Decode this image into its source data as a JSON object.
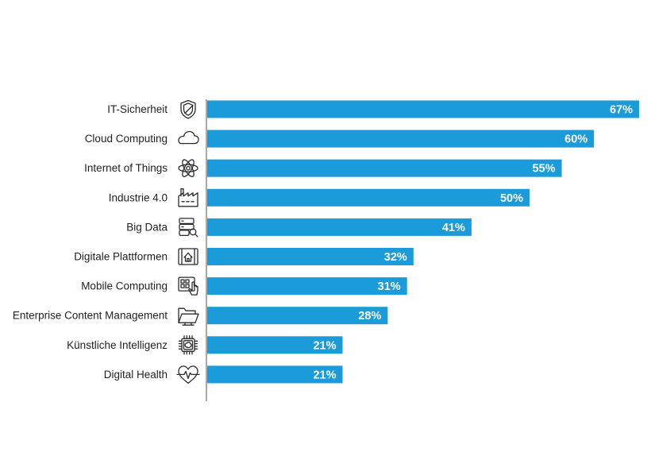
{
  "chart_data": {
    "type": "bar",
    "orientation": "horizontal",
    "title": "",
    "xlabel": "",
    "ylabel": "",
    "xlim": [
      0,
      67
    ],
    "unit": "%",
    "bar_color": "#1b9bd9",
    "axis_color": "#6e6e6e",
    "label_color": "#1f1f1f",
    "value_label_color": "#ffffff",
    "categories": [
      "IT-Sicherheit",
      "Cloud Computing",
      "Internet of Things",
      "Industrie 4.0",
      "Big Data",
      "Digitale Plattformen",
      "Mobile Computing",
      "Enterprise Content Management",
      "Künstliche Intelligenz",
      "Digital Health"
    ],
    "values": [
      67,
      60,
      55,
      50,
      41,
      32,
      31,
      28,
      21,
      21
    ],
    "value_labels": [
      "67%",
      "60%",
      "55%",
      "50%",
      "41%",
      "32%",
      "31%",
      "28%",
      "21%",
      "21%"
    ],
    "icons": [
      "shield-icon",
      "cloud-icon",
      "atom-icon",
      "factory-icon",
      "database-search-icon",
      "platform-house-icon",
      "mobile-touch-icon",
      "folder-icon",
      "chip-brain-icon",
      "heart-pulse-icon"
    ]
  }
}
